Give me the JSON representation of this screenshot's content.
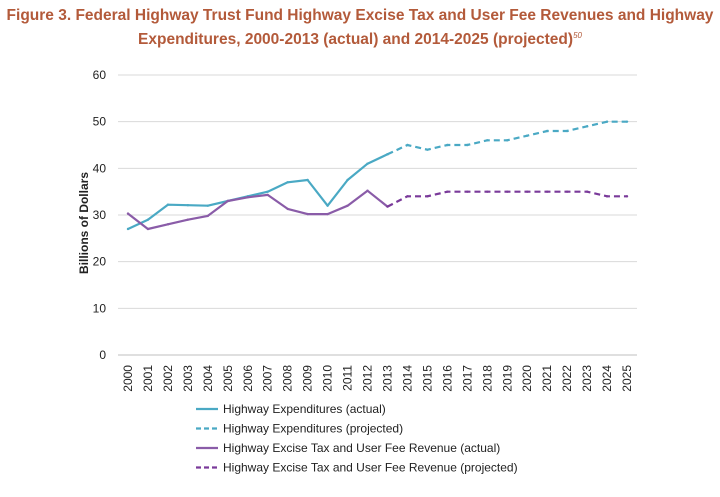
{
  "chart_data": {
    "type": "line",
    "title": "Figure 3. Federal Highway Trust Fund Highway Excise Tax and User Fee Revenues and Highway",
    "title_line2": "Expenditures, 2000-2013 (actual) and 2014-2025 (projected)",
    "title_footnote": "50",
    "ylabel": "Billions of Dollars",
    "xlabel": "",
    "ylim": [
      0,
      60
    ],
    "yticks": [
      0,
      10,
      20,
      30,
      40,
      50,
      60
    ],
    "grid": true,
    "legend_placement": "bottom",
    "x": [
      "2000",
      "2001",
      "2002",
      "2003",
      "2004",
      "2005",
      "2006",
      "2007",
      "2008",
      "2009",
      "2010",
      "2011",
      "2012",
      "2013",
      "2014",
      "2015",
      "2016",
      "2017",
      "2018",
      "2019",
      "2020",
      "2021",
      "2022",
      "2023",
      "2024",
      "2025"
    ],
    "series": [
      {
        "name": "Highway Expenditures (actual)",
        "color": "#4aa9c4",
        "dashed": false,
        "x": [
          "2000",
          "2001",
          "2002",
          "2003",
          "2004",
          "2005",
          "2006",
          "2007",
          "2008",
          "2009",
          "2010",
          "2011",
          "2012",
          "2013"
        ],
        "values": [
          27,
          29,
          32.2,
          32.1,
          32,
          33,
          34,
          35,
          37,
          37.5,
          32,
          37.5,
          41,
          43
        ]
      },
      {
        "name": "Highway Expenditures (projected)",
        "color": "#4aa9c4",
        "dashed": true,
        "x": [
          "2013",
          "2014",
          "2015",
          "2016",
          "2017",
          "2018",
          "2019",
          "2020",
          "2021",
          "2022",
          "2023",
          "2024",
          "2025"
        ],
        "values": [
          43,
          45,
          44,
          45,
          45,
          46,
          46,
          47,
          48,
          48,
          49,
          50,
          50
        ]
      },
      {
        "name": "Highway Excise Tax and User Fee Revenue (actual)",
        "color": "#8a5ca8",
        "dashed": false,
        "x": [
          "2000",
          "2001",
          "2002",
          "2003",
          "2004",
          "2005",
          "2006",
          "2007",
          "2008",
          "2009",
          "2010",
          "2011",
          "2012",
          "2013"
        ],
        "values": [
          30.3,
          27,
          28,
          29,
          29.8,
          33,
          33.8,
          34.3,
          31.3,
          30.2,
          30.2,
          32,
          35.2,
          31.8
        ]
      },
      {
        "name": "Highway Excise Tax and User Fee Revenue (projected)",
        "color": "#7a3a9a",
        "dashed": true,
        "x": [
          "2013",
          "2014",
          "2015",
          "2016",
          "2017",
          "2018",
          "2019",
          "2020",
          "2021",
          "2022",
          "2023",
          "2024",
          "2025"
        ],
        "values": [
          31.8,
          34,
          34,
          35,
          35,
          35,
          35,
          35,
          35,
          35,
          35,
          34,
          34
        ]
      }
    ]
  }
}
